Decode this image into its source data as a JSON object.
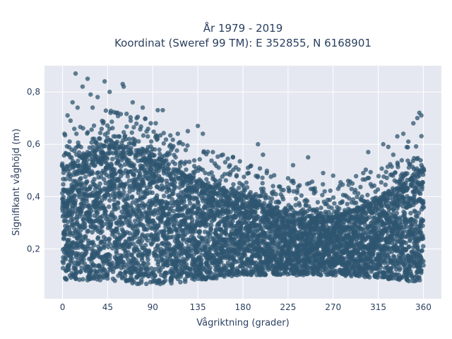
{
  "chart_data": {
    "type": "scatter",
    "title_line1": "År 1979 - 2019",
    "title_line2": "Koordinat (Sweref 99 TM): E 352855, N 6168901",
    "xlabel": "Vågriktning (grader)",
    "ylabel": "Signifikant våghöjd (m)",
    "xlim": [
      -18,
      378
    ],
    "ylim": [
      0.01,
      0.9
    ],
    "x_ticks": [
      0,
      45,
      90,
      135,
      180,
      225,
      270,
      315,
      360
    ],
    "x_tick_labels": [
      "0",
      "45",
      "90",
      "135",
      "180",
      "225",
      "270",
      "315",
      "360"
    ],
    "y_ticks": [
      0.2,
      0.4,
      0.6,
      0.8
    ],
    "y_tick_labels": [
      "0,2",
      "0,4",
      "0,6",
      "0,8"
    ],
    "grid": true,
    "marker_color": "#2f5570",
    "band": {
      "x": [
        0,
        45,
        90,
        135,
        180,
        225,
        270,
        315,
        360
      ],
      "dense_upper": [
        0.5,
        0.6,
        0.55,
        0.45,
        0.4,
        0.33,
        0.32,
        0.38,
        0.5
      ],
      "lower": [
        0.08,
        0.08,
        0.06,
        0.08,
        0.1,
        0.1,
        0.1,
        0.09,
        0.07
      ]
    },
    "outliers": [
      [
        13,
        0.87
      ],
      [
        25,
        0.85
      ],
      [
        42,
        0.84
      ],
      [
        20,
        0.82
      ],
      [
        60,
        0.83
      ],
      [
        61,
        0.82
      ],
      [
        28,
        0.79
      ],
      [
        47,
        0.8
      ],
      [
        35,
        0.78
      ],
      [
        10,
        0.76
      ],
      [
        5,
        0.71
      ],
      [
        15,
        0.74
      ],
      [
        70,
        0.76
      ],
      [
        80,
        0.74
      ],
      [
        95,
        0.73
      ],
      [
        100,
        0.73
      ],
      [
        55,
        0.72
      ],
      [
        125,
        0.65
      ],
      [
        135,
        0.67
      ],
      [
        140,
        0.64
      ],
      [
        150,
        0.57
      ],
      [
        160,
        0.56
      ],
      [
        170,
        0.55
      ],
      [
        195,
        0.6
      ],
      [
        200,
        0.56
      ],
      [
        230,
        0.52
      ],
      [
        225,
        0.47
      ],
      [
        245,
        0.55
      ],
      [
        260,
        0.49
      ],
      [
        270,
        0.48
      ],
      [
        285,
        0.46
      ],
      [
        300,
        0.49
      ],
      [
        305,
        0.57
      ],
      [
        320,
        0.6
      ],
      [
        325,
        0.59
      ],
      [
        330,
        0.56
      ],
      [
        334,
        0.63
      ],
      [
        340,
        0.64
      ],
      [
        345,
        0.61
      ],
      [
        350,
        0.68
      ],
      [
        354,
        0.7
      ],
      [
        356,
        0.72
      ],
      [
        358,
        0.71
      ],
      [
        210,
        0.44
      ],
      [
        250,
        0.43
      ],
      [
        275,
        0.43
      ],
      [
        185,
        0.51
      ],
      [
        115,
        0.64
      ],
      [
        120,
        0.6
      ],
      [
        88,
        0.68
      ],
      [
        2,
        0.64
      ],
      [
        8,
        0.69
      ],
      [
        30,
        0.74
      ]
    ]
  }
}
